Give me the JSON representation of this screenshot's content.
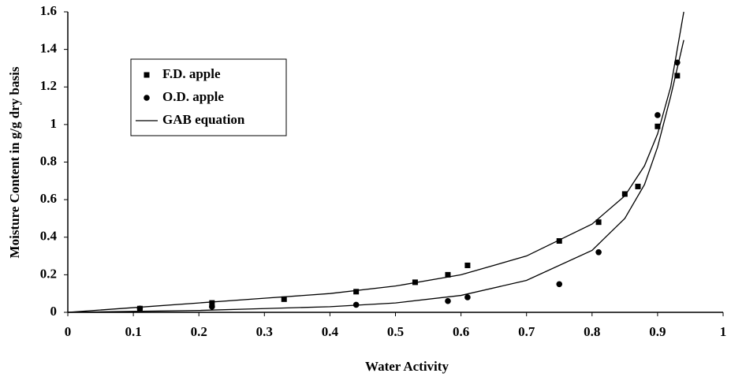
{
  "chart_data": {
    "type": "scatter",
    "x_label": "Water Activity",
    "y_label": "Moisture Content in g/g dry basis",
    "xlim": [
      0,
      1
    ],
    "xticks": [
      0,
      0.1,
      0.2,
      0.3,
      0.4,
      0.5,
      0.6,
      0.7,
      0.8,
      0.9,
      1
    ],
    "ylim": [
      0,
      1.6
    ],
    "yticks": [
      0,
      0.2,
      0.4,
      0.6,
      0.8,
      1,
      1.2,
      1.4,
      1.6
    ],
    "series": [
      {
        "name": "F.D. apple",
        "color": "#000000",
        "marker": "square",
        "x": [
          0.11,
          0.22,
          0.33,
          0.44,
          0.53,
          0.58,
          0.61,
          0.75,
          0.81,
          0.85,
          0.87,
          0.9,
          0.93
        ],
        "values": [
          0.02,
          0.05,
          0.07,
          0.11,
          0.16,
          0.2,
          0.25,
          0.38,
          0.48,
          0.63,
          0.67,
          0.99,
          1.26
        ]
      },
      {
        "name": "O.D. apple",
        "color": "#000000",
        "marker": "circle",
        "x": [
          0.11,
          0.22,
          0.44,
          0.58,
          0.61,
          0.75,
          0.81,
          0.9,
          0.93
        ],
        "values": [
          0.02,
          0.03,
          0.04,
          0.06,
          0.08,
          0.15,
          0.32,
          1.05,
          1.33
        ]
      },
      {
        "name": "GAB equation",
        "color": "#000000",
        "marker": "line",
        "curves": [
          {
            "x": [
              0,
              0.1,
              0.2,
              0.3,
              0.4,
              0.5,
              0.6,
              0.7,
              0.8,
              0.85,
              0.88,
              0.9,
              0.92,
              0.94
            ],
            "values": [
              0,
              0.025,
              0.05,
              0.075,
              0.1,
              0.14,
              0.2,
              0.3,
              0.47,
              0.62,
              0.78,
              0.95,
              1.2,
              1.6
            ]
          },
          {
            "x": [
              0,
              0.1,
              0.2,
              0.3,
              0.4,
              0.5,
              0.6,
              0.7,
              0.8,
              0.85,
              0.88,
              0.9,
              0.92,
              0.94
            ],
            "values": [
              0,
              0.005,
              0.01,
              0.02,
              0.03,
              0.05,
              0.09,
              0.17,
              0.33,
              0.5,
              0.68,
              0.88,
              1.15,
              1.45
            ]
          }
        ]
      }
    ]
  }
}
